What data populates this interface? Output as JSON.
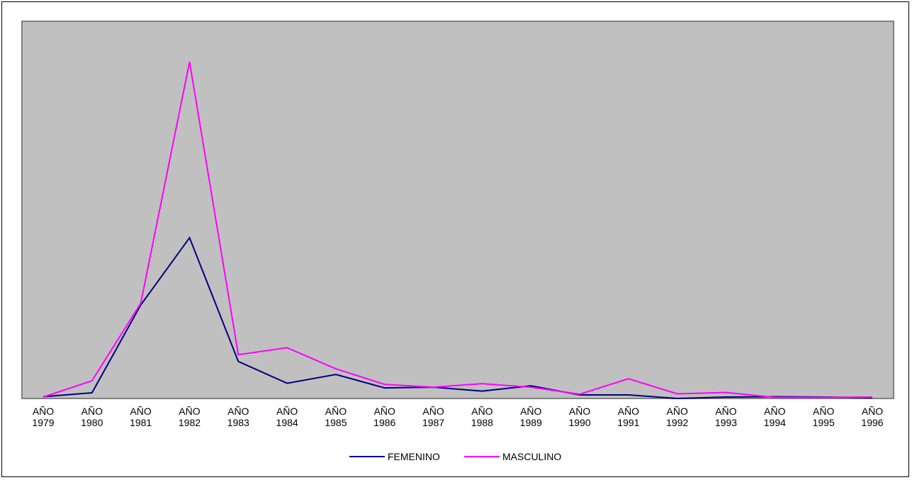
{
  "chart_data": {
    "type": "line",
    "categories": [
      [
        "AÑO",
        "1979"
      ],
      [
        "AÑO",
        "1980"
      ],
      [
        "AÑO",
        "1981"
      ],
      [
        "AÑO",
        "1982"
      ],
      [
        "AÑO",
        "1983"
      ],
      [
        "AÑO",
        "1984"
      ],
      [
        "AÑO",
        "1985"
      ],
      [
        "AÑO",
        "1986"
      ],
      [
        "AÑO",
        "1987"
      ],
      [
        "AÑO",
        "1988"
      ],
      [
        "AÑO",
        "1989"
      ],
      [
        "AÑO",
        "1990"
      ],
      [
        "AÑO",
        "1991"
      ],
      [
        "AÑO",
        "1992"
      ],
      [
        "AÑO",
        "1993"
      ],
      [
        "AÑO",
        "1994"
      ],
      [
        "AÑO",
        "1995"
      ],
      [
        "AÑO",
        "1996"
      ]
    ],
    "series": [
      {
        "name": "FEMENINO",
        "color": "#000080",
        "values": [
          0.5,
          1.6,
          26.5,
          45.6,
          10.5,
          4.3,
          6.8,
          3.0,
          3.2,
          2.1,
          3.6,
          1.0,
          1.0,
          0.0,
          0.4,
          0.5,
          0.4,
          0.2
        ]
      },
      {
        "name": "MASCULINO",
        "color": "#ff00ff",
        "values": [
          0.4,
          5.0,
          27.0,
          95.5,
          12.4,
          14.4,
          8.4,
          4.0,
          3.2,
          4.2,
          3.2,
          1.2,
          5.6,
          1.3,
          1.7,
          0.3,
          0.3,
          0.4
        ]
      }
    ],
    "ylim": [
      0,
      107
    ],
    "y_axis_visible": false,
    "grid": false,
    "plot_background": "#c0c0c0",
    "plot_border": "#808080",
    "legend_position": "bottom"
  }
}
